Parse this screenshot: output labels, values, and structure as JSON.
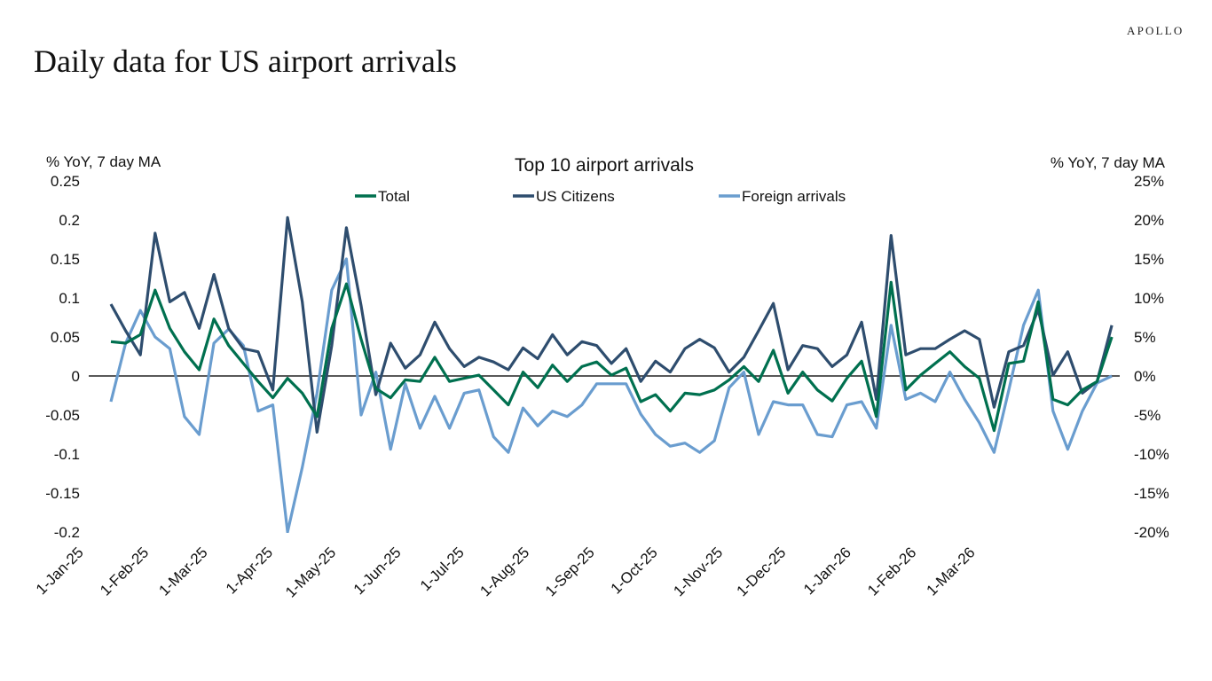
{
  "header": {
    "title": "Daily data for US airport arrivals",
    "logo": "APOLLO"
  },
  "chart_data": {
    "type": "line",
    "title": "Top 10 airport arrivals",
    "ylabel_left": "% YoY, 7 day MA",
    "ylabel_right": "% YoY, 7 day MA",
    "ylim": [
      -0.2,
      0.25
    ],
    "y_ticks_left": [
      "0.25",
      "0.2",
      "0.15",
      "0.1",
      "0.05",
      "0",
      "-0.05",
      "-0.1",
      "-0.15",
      "-0.2"
    ],
    "y_ticks_right": [
      "25%",
      "20%",
      "15%",
      "10%",
      "5%",
      "0%",
      "-5%",
      "-10%",
      "-15%",
      "-20%"
    ],
    "x_tick_labels": [
      "1-Jan-25",
      "1-Feb-25",
      "1-Mar-25",
      "1-Apr-25",
      "1-May-25",
      "1-Jun-25",
      "1-Jul-25",
      "1-Aug-25",
      "1-Sep-25",
      "1-Oct-25",
      "1-Nov-25",
      "1-Dec-25",
      "1-Jan-26",
      "1-Feb-26",
      "1-Mar-26"
    ],
    "x_tick_dates": [
      "2025-01-01",
      "2025-02-01",
      "2025-03-01",
      "2025-04-01",
      "2025-05-01",
      "2025-06-01",
      "2025-07-01",
      "2025-08-01",
      "2025-09-01",
      "2025-10-01",
      "2025-11-01",
      "2025-12-01",
      "2026-01-01",
      "2026-02-01",
      "2026-03-01"
    ],
    "grid": false,
    "legend_position": "top",
    "x": [
      "2025-01-01",
      "2025-01-08",
      "2025-01-15",
      "2025-01-22",
      "2025-01-29",
      "2025-02-05",
      "2025-02-12",
      "2025-02-19",
      "2025-02-26",
      "2025-03-05",
      "2025-03-12",
      "2025-03-19",
      "2025-03-26",
      "2025-04-02",
      "2025-04-09",
      "2025-04-16",
      "2025-04-23",
      "2025-04-30",
      "2025-05-07",
      "2025-05-14",
      "2025-05-21",
      "2025-05-28",
      "2025-06-04",
      "2025-06-11",
      "2025-06-18",
      "2025-06-25",
      "2025-07-02",
      "2025-07-09",
      "2025-07-16",
      "2025-07-23",
      "2025-07-30",
      "2025-08-06",
      "2025-08-13",
      "2025-08-20",
      "2025-08-27",
      "2025-09-03",
      "2025-09-10",
      "2025-09-17",
      "2025-09-24",
      "2025-10-01",
      "2025-10-08",
      "2025-10-15",
      "2025-10-22",
      "2025-10-29",
      "2025-11-05",
      "2025-11-12",
      "2025-11-19",
      "2025-11-26",
      "2025-12-03",
      "2025-12-10",
      "2025-12-17",
      "2025-12-24",
      "2025-12-31",
      "2026-01-07",
      "2026-01-14",
      "2026-01-21",
      "2026-01-28",
      "2026-02-04",
      "2026-02-11",
      "2026-02-18",
      "2026-02-25",
      "2026-03-04",
      "2026-03-11",
      "2026-03-18",
      "2026-03-25",
      "2026-04-01",
      "2026-04-08",
      "2026-04-15",
      "2026-04-22"
    ],
    "series": [
      {
        "name": "Total",
        "color": "#00704f",
        "values": [
          0.044,
          0.042,
          0.053,
          0.11,
          0.061,
          0.031,
          0.008,
          0.073,
          0.039,
          0.016,
          -0.007,
          -0.028,
          -0.003,
          -0.022,
          -0.052,
          0.061,
          0.118,
          0.047,
          -0.016,
          -0.028,
          -0.005,
          -0.007,
          0.024,
          -0.007,
          -0.003,
          0.001,
          -0.018,
          -0.037,
          0.005,
          -0.015,
          0.014,
          -0.007,
          0.012,
          0.018,
          0.001,
          0.01,
          -0.033,
          -0.024,
          -0.045,
          -0.022,
          -0.024,
          -0.018,
          -0.005,
          0.012,
          -0.007,
          0.033,
          -0.022,
          0.005,
          -0.018,
          -0.032,
          -0.003,
          0.019,
          -0.052,
          0.12,
          -0.018,
          0.001,
          0.016,
          0.031,
          0.012,
          -0.003,
          -0.07,
          0.016,
          0.019,
          0.095,
          -0.03,
          -0.037,
          -0.018,
          -0.007,
          0.05
        ]
      },
      {
        "name": "US Citizens",
        "color": "#2e4d6e",
        "values": [
          0.092,
          0.058,
          0.027,
          0.183,
          0.095,
          0.107,
          0.061,
          0.13,
          0.061,
          0.035,
          0.031,
          -0.018,
          0.203,
          0.095,
          -0.072,
          0.039,
          0.19,
          0.09,
          -0.024,
          0.042,
          0.01,
          0.027,
          0.069,
          0.035,
          0.012,
          0.024,
          0.018,
          0.008,
          0.036,
          0.022,
          0.053,
          0.027,
          0.044,
          0.039,
          0.016,
          0.035,
          -0.007,
          0.019,
          0.005,
          0.035,
          0.047,
          0.036,
          0.005,
          0.024,
          0.058,
          0.093,
          0.008,
          0.039,
          0.035,
          0.012,
          0.027,
          0.069,
          -0.03,
          0.18,
          0.027,
          0.035,
          0.035,
          0.047,
          0.058,
          0.047,
          -0.04,
          0.031,
          0.039,
          0.085,
          0.001,
          0.031,
          -0.022,
          -0.007,
          0.065
        ]
      },
      {
        "name": "Foreign arrivals",
        "color": "#6a9dcf",
        "values": [
          -0.033,
          0.042,
          0.084,
          0.05,
          0.035,
          -0.052,
          -0.075,
          0.042,
          0.06,
          0.039,
          -0.045,
          -0.037,
          -0.2,
          -0.117,
          -0.022,
          0.11,
          0.15,
          -0.05,
          0.005,
          -0.094,
          -0.01,
          -0.067,
          -0.026,
          -0.067,
          -0.022,
          -0.018,
          -0.078,
          -0.098,
          -0.041,
          -0.064,
          -0.045,
          -0.052,
          -0.037,
          -0.01,
          -0.01,
          -0.01,
          -0.049,
          -0.075,
          -0.09,
          -0.086,
          -0.098,
          -0.083,
          -0.015,
          0.005,
          -0.075,
          -0.033,
          -0.037,
          -0.037,
          -0.075,
          -0.078,
          -0.037,
          -0.033,
          -0.067,
          0.065,
          -0.03,
          -0.022,
          -0.033,
          0.005,
          -0.03,
          -0.06,
          -0.098,
          -0.018,
          0.065,
          0.11,
          -0.045,
          -0.094,
          -0.045,
          -0.009,
          0.0
        ]
      }
    ]
  }
}
